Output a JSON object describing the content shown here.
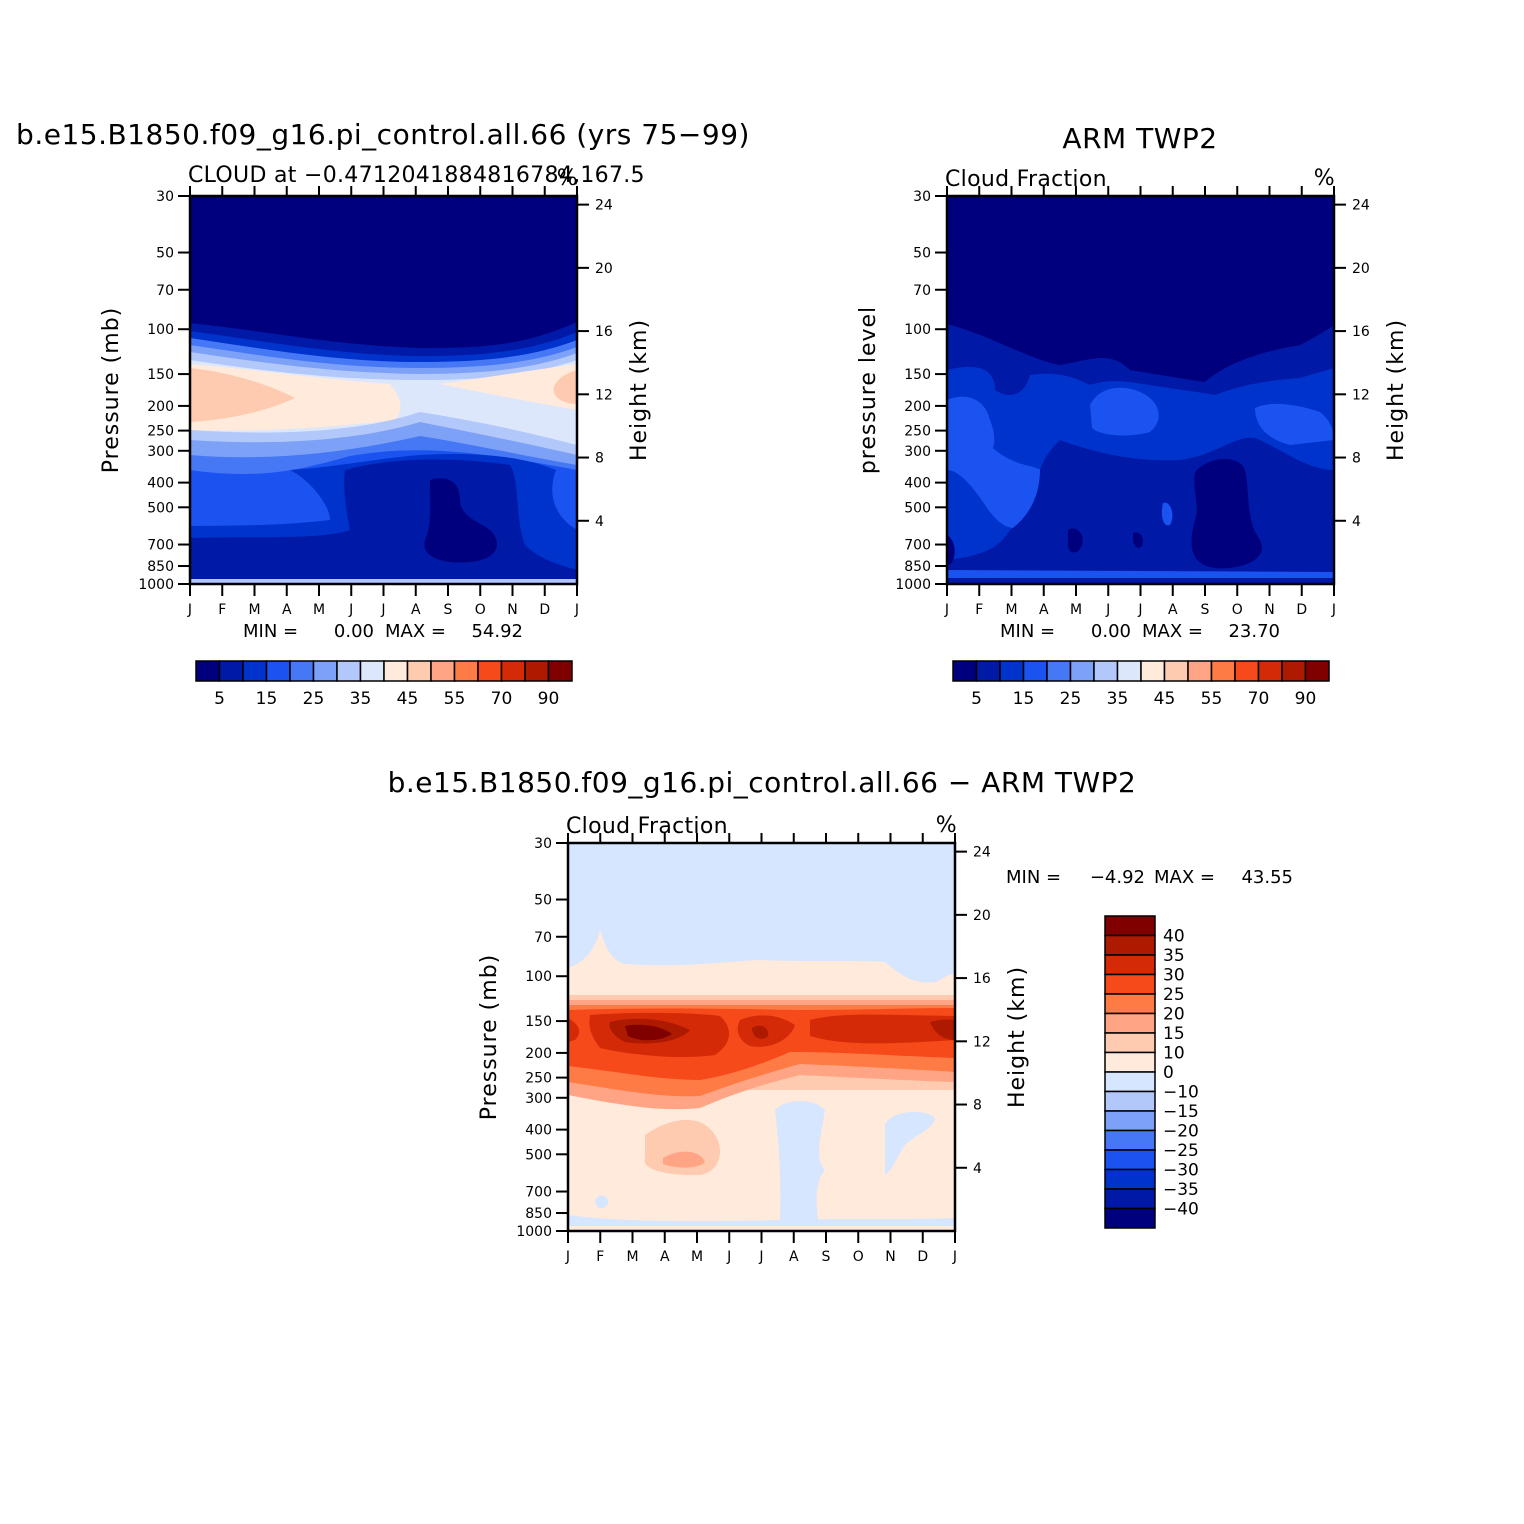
{
  "colors": {
    "seq": [
      "#00007f",
      "#0019a6",
      "#0033cc",
      "#1a53f0",
      "#4678f5",
      "#7da1f7",
      "#b3c8fa",
      "#dde7fc",
      "#ffeadb",
      "#ffcbb0",
      "#ffa585",
      "#ff7b45",
      "#f74a1a",
      "#d42a08",
      "#ad1a00",
      "#800000"
    ],
    "diff": [
      "#00007f",
      "#0019a6",
      "#0033cc",
      "#1a53f0",
      "#4678f5",
      "#7da1f7",
      "#b3c8fa",
      "#d6e6ff",
      "#ffeadb",
      "#ffcbb0",
      "#ffa585",
      "#ff7b45",
      "#f74a1a",
      "#d42a08",
      "#ad1a00",
      "#800000"
    ]
  },
  "chart_data": [
    {
      "type": "heatmap",
      "title": "b.e15.B1850.f09_g16.pi_control.all.66 (yrs 75−99)",
      "subtitle": "CLOUD at −0.4712041884816784,167.5",
      "units": "%",
      "ylabel": "Pressure (mb)",
      "ylabel_right": "Height (km)",
      "x_ticks": [
        "J",
        "F",
        "M",
        "A",
        "M",
        "J",
        "J",
        "A",
        "S",
        "O",
        "N",
        "D",
        "J"
      ],
      "y_ticks": [
        "30",
        "50",
        "70",
        "100",
        "150",
        "200",
        "250",
        "300",
        "400",
        "500",
        "700",
        "850",
        "1000"
      ],
      "y_right_ticks": [
        "24",
        "20",
        "16",
        "12",
        "8",
        "4"
      ],
      "min_label": "MIN =",
      "min_value": "0.00",
      "max_label": "MAX =",
      "max_value": "54.92",
      "colorbar_labels": [
        "5",
        "15",
        "25",
        "35",
        "45",
        "55",
        "70",
        "90"
      ]
    },
    {
      "type": "heatmap",
      "title": "ARM TWP2",
      "subtitle": "Cloud Fraction",
      "units": "%",
      "ylabel": "pressure level",
      "ylabel_right": "Height (km)",
      "x_ticks": [
        "J",
        "F",
        "M",
        "A",
        "M",
        "J",
        "J",
        "A",
        "S",
        "O",
        "N",
        "D",
        "J"
      ],
      "y_ticks": [
        "30",
        "50",
        "70",
        "100",
        "150",
        "200",
        "250",
        "300",
        "400",
        "500",
        "700",
        "850",
        "1000"
      ],
      "y_right_ticks": [
        "24",
        "20",
        "16",
        "12",
        "8",
        "4"
      ],
      "min_label": "MIN =",
      "min_value": "0.00",
      "max_label": "MAX =",
      "max_value": "23.70",
      "colorbar_labels": [
        "5",
        "15",
        "25",
        "35",
        "45",
        "55",
        "70",
        "90"
      ]
    },
    {
      "type": "heatmap",
      "title": "b.e15.B1850.f09_g16.pi_control.all.66 − ARM TWP2",
      "subtitle": "Cloud Fraction",
      "units": "%",
      "ylabel": "Pressure (mb)",
      "ylabel_right": "Height (km)",
      "x_ticks": [
        "J",
        "F",
        "M",
        "A",
        "M",
        "J",
        "J",
        "A",
        "S",
        "O",
        "N",
        "D",
        "J"
      ],
      "y_ticks": [
        "30",
        "50",
        "70",
        "100",
        "150",
        "200",
        "250",
        "300",
        "400",
        "500",
        "700",
        "850",
        "1000"
      ],
      "y_right_ticks": [
        "24",
        "20",
        "16",
        "12",
        "8",
        "4"
      ],
      "min_label": "MIN =",
      "min_value": "−4.92",
      "max_label": "MAX =",
      "max_value": "43.55",
      "colorbar_labels": [
        "40",
        "35",
        "30",
        "25",
        "20",
        "15",
        "10",
        "0",
        "−10",
        "−15",
        "−20",
        "−25",
        "−30",
        "−35",
        "−40"
      ]
    }
  ]
}
